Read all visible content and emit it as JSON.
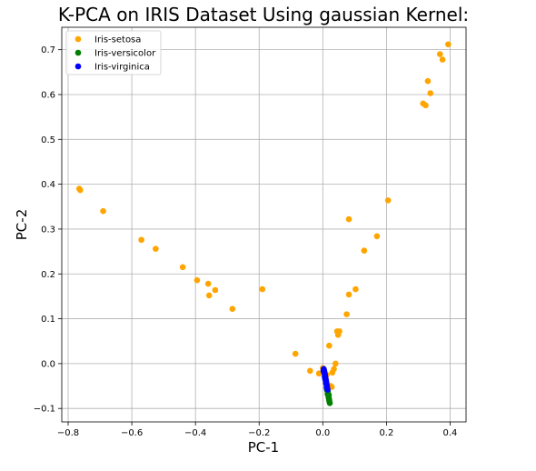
{
  "chart_data": {
    "type": "scatter",
    "title": "K-PCA on IRIS Dataset Using gaussian Kernel:",
    "xlabel": "PC-1",
    "ylabel": "PC-2",
    "xlim": [
      -0.82,
      0.45
    ],
    "ylim": [
      -0.13,
      0.75
    ],
    "grid": true,
    "legend_position": "top-left",
    "x_ticks": [
      -0.8,
      -0.6,
      -0.4,
      -0.2,
      0.0,
      0.2,
      0.4
    ],
    "x_tick_labels": [
      "−0.8",
      "−0.6",
      "−0.4",
      "−0.2",
      "0.0",
      "0.2",
      "0.4"
    ],
    "y_ticks": [
      -0.1,
      0.0,
      0.1,
      0.2,
      0.3,
      0.4,
      0.5,
      0.6,
      0.7
    ],
    "y_tick_labels": [
      "−0.1",
      "0.0",
      "0.1",
      "0.2",
      "0.3",
      "0.4",
      "0.5",
      "0.6",
      "0.7"
    ],
    "series": [
      {
        "name": "Iris-setosa",
        "color": "#ffa500",
        "points": [
          [
            -0.765,
            0.39
          ],
          [
            -0.762,
            0.387
          ],
          [
            -0.69,
            0.34
          ],
          [
            -0.57,
            0.276
          ],
          [
            -0.525,
            0.256
          ],
          [
            -0.44,
            0.215
          ],
          [
            -0.395,
            0.186
          ],
          [
            -0.36,
            0.178
          ],
          [
            -0.357,
            0.152
          ],
          [
            -0.338,
            0.164
          ],
          [
            -0.284,
            0.122
          ],
          [
            -0.19,
            0.166
          ],
          [
            -0.086,
            0.022
          ],
          [
            -0.04,
            -0.016
          ],
          [
            -0.012,
            -0.022
          ],
          [
            0.0,
            -0.01
          ],
          [
            0.006,
            -0.03
          ],
          [
            0.012,
            -0.025
          ],
          [
            0.02,
            0.04
          ],
          [
            0.025,
            -0.05
          ],
          [
            0.03,
            -0.02
          ],
          [
            0.035,
            -0.012
          ],
          [
            0.04,
            0.0
          ],
          [
            0.045,
            0.072
          ],
          [
            0.048,
            0.064
          ],
          [
            0.052,
            0.072
          ],
          [
            0.075,
            0.11
          ],
          [
            0.082,
            0.154
          ],
          [
            0.082,
            0.322
          ],
          [
            0.103,
            0.166
          ],
          [
            0.13,
            0.252
          ],
          [
            0.17,
            0.284
          ],
          [
            0.205,
            0.364
          ],
          [
            0.315,
            0.58
          ],
          [
            0.323,
            0.576
          ],
          [
            0.33,
            0.63
          ],
          [
            0.338,
            0.603
          ],
          [
            0.368,
            0.69
          ],
          [
            0.376,
            0.678
          ],
          [
            0.394,
            0.712
          ],
          [
            0.028,
            -0.052
          ]
        ]
      },
      {
        "name": "Iris-versicolor",
        "color": "#008000",
        "points": [
          [
            0.014,
            -0.06
          ],
          [
            0.016,
            -0.065
          ],
          [
            0.017,
            -0.07
          ],
          [
            0.018,
            -0.075
          ],
          [
            0.019,
            -0.078
          ],
          [
            0.02,
            -0.082
          ],
          [
            0.021,
            -0.085
          ],
          [
            0.022,
            -0.088
          ],
          [
            0.015,
            -0.068
          ],
          [
            0.018,
            -0.072
          ],
          [
            0.02,
            -0.08
          ],
          [
            0.013,
            -0.058
          ],
          [
            0.016,
            -0.062
          ],
          [
            0.012,
            -0.055
          ],
          [
            0.019,
            -0.07
          ]
        ]
      },
      {
        "name": "Iris-virginica",
        "color": "#0000ff",
        "points": [
          [
            0.003,
            -0.012
          ],
          [
            0.004,
            -0.015
          ],
          [
            0.005,
            -0.018
          ],
          [
            0.006,
            -0.022
          ],
          [
            0.007,
            -0.026
          ],
          [
            0.008,
            -0.03
          ],
          [
            0.009,
            -0.034
          ],
          [
            0.01,
            -0.038
          ],
          [
            0.011,
            -0.042
          ],
          [
            0.012,
            -0.046
          ],
          [
            0.013,
            -0.05
          ],
          [
            0.014,
            -0.054
          ],
          [
            0.015,
            -0.058
          ],
          [
            0.004,
            -0.02
          ],
          [
            0.006,
            -0.028
          ],
          [
            0.008,
            -0.036
          ],
          [
            0.01,
            -0.044
          ],
          [
            0.012,
            -0.052
          ],
          [
            0.002,
            -0.016
          ],
          [
            0.007,
            -0.032
          ]
        ]
      }
    ]
  }
}
